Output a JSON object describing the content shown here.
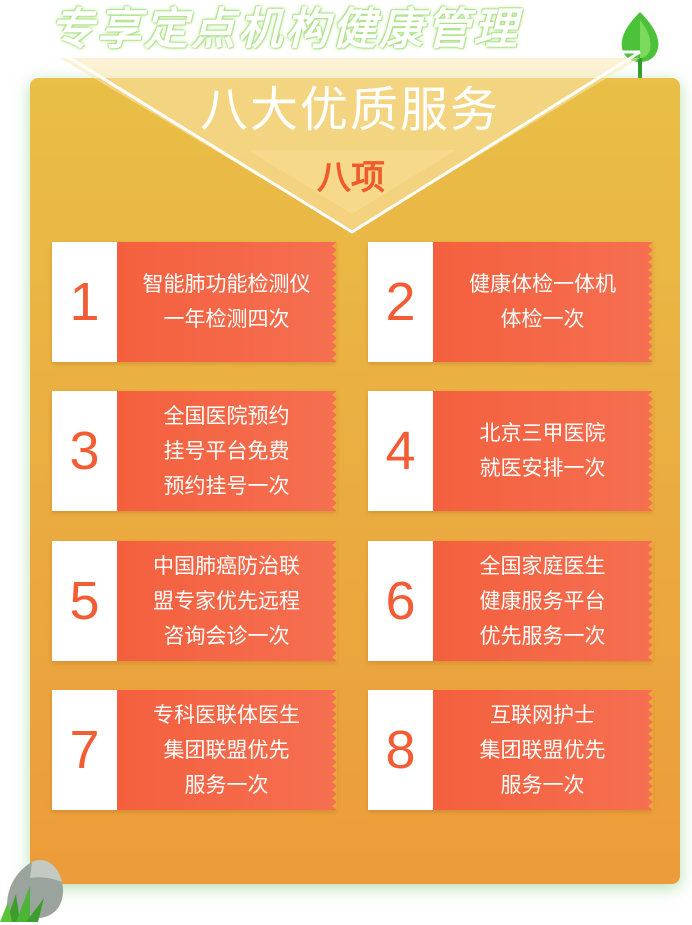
{
  "header": {
    "top_title": "专享定点机构健康管理",
    "subtitle": "八大优质服务",
    "count_label": "八项"
  },
  "services": [
    {
      "number": "1",
      "lines": [
        "智能肺功能检测仪",
        "一年检测四次"
      ]
    },
    {
      "number": "2",
      "lines": [
        "健康体检一体机",
        "体检一次"
      ]
    },
    {
      "number": "3",
      "lines": [
        "全国医院预约",
        "挂号平台免费",
        "预约挂号一次"
      ]
    },
    {
      "number": "4",
      "lines": [
        "北京三甲医院",
        "就医安排一次"
      ]
    },
    {
      "number": "5",
      "lines": [
        "中国肺癌防治联",
        "盟专家优先远程",
        "咨询会诊一次"
      ]
    },
    {
      "number": "6",
      "lines": [
        "全国家庭医生",
        "健康服务平台",
        "优先服务一次"
      ]
    },
    {
      "number": "7",
      "lines": [
        "专科医联体医生",
        "集团联盟优先",
        "服务一次"
      ]
    },
    {
      "number": "8",
      "lines": [
        "互联网护士",
        "集团联盟优先",
        "服务一次"
      ]
    }
  ],
  "colors": {
    "panel_top": "#e9bf47",
    "panel_bottom": "#ec9c3a",
    "card_red": "#f4603e",
    "number_color": "#f25d36",
    "accent_green": "#5cc23a"
  },
  "icons": [
    "leaf-icon",
    "rock-icon"
  ]
}
